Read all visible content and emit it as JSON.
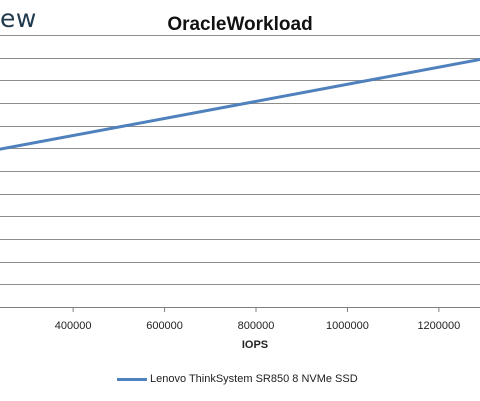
{
  "header": {
    "brand_fragment": "ew"
  },
  "chart_data": {
    "type": "line",
    "title": "OracleWorkload",
    "xlabel": "IOPS",
    "ylabel": "",
    "x_ticks": [
      400000,
      600000,
      800000,
      1000000,
      1200000
    ],
    "x_tick_labels": [
      "400000",
      "600000",
      "800000",
      "1000000",
      "1200000"
    ],
    "xlim": [
      240000,
      1290000
    ],
    "grid_lines": 13,
    "grid": true,
    "legend_position": "bottom",
    "series": [
      {
        "name": "Lenovo ThinkSystem SR850 8 NVMe SSD",
        "color": "#4f81bd",
        "x": [
          240000,
          1290000
        ],
        "y_fraction": [
          0.58,
          0.91
        ]
      }
    ]
  }
}
